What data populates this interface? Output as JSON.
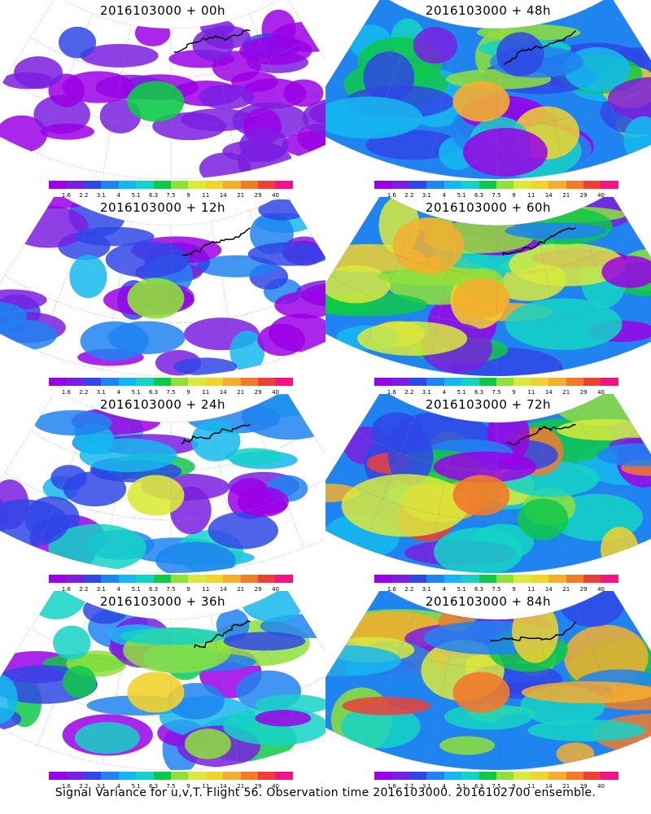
{
  "panels": [
    {
      "title": "2016103000 + 00h",
      "lead": "00h"
    },
    {
      "title": "2016103000 + 48h",
      "lead": "48h"
    },
    {
      "title": "2016103000 + 12h",
      "lead": "12h"
    },
    {
      "title": "2016103000 + 60h",
      "lead": "60h"
    },
    {
      "title": "2016103000 + 24h",
      "lead": "24h"
    },
    {
      "title": "2016103000 + 72h",
      "lead": "72h"
    },
    {
      "title": "2016103000 + 36h",
      "lead": "36h"
    },
    {
      "title": "2016103000 + 84h",
      "lead": "84h"
    }
  ],
  "colorbar": {
    "labels": [
      "1.6",
      "2.2",
      "3.1",
      "4",
      "5.1",
      "6.3",
      "7.5",
      "9",
      "11",
      "14",
      "21",
      "29",
      "40"
    ],
    "colors": [
      "#9b00e6",
      "#7a1fe0",
      "#2f47e6",
      "#1f84f0",
      "#15b8ee",
      "#14d3c6",
      "#0ec948",
      "#8fe03a",
      "#d9ea3c",
      "#f2d22c",
      "#f4ae2f",
      "#f17a2b",
      "#ee3e3a",
      "#f01484"
    ]
  },
  "caption": "Signal Variance for u,v,T. Flight 56. Observation time 2016103000. 2016102700 ensemble.",
  "map_intensity": {
    "00h": 0.15,
    "12h": 0.3,
    "24h": 0.45,
    "36h": 0.55,
    "48h": 0.7,
    "60h": 0.78,
    "72h": 0.88,
    "84h": 0.95
  }
}
